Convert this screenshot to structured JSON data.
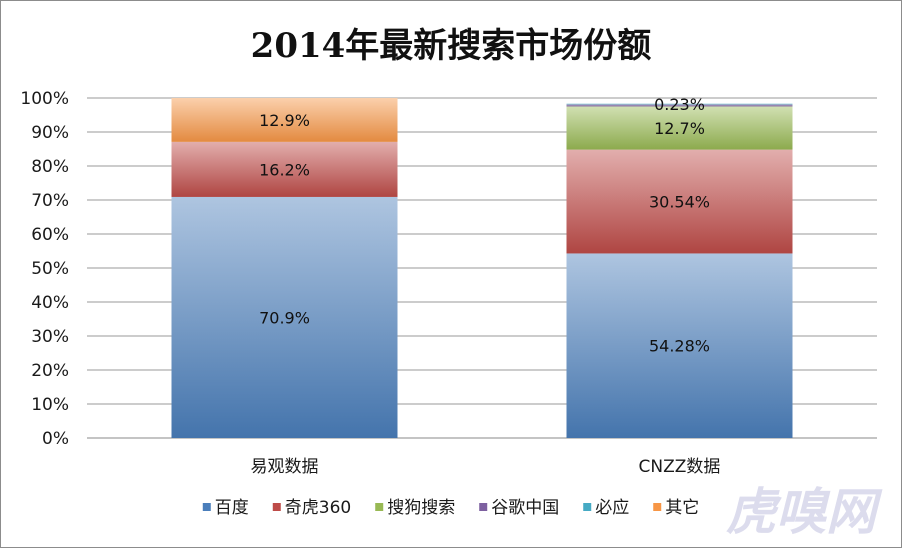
{
  "chart_data": {
    "type": "bar",
    "stacked": true,
    "title": "2014年最新搜索市场份额",
    "categories": [
      "易观数据",
      "CNZZ数据"
    ],
    "ylim": [
      0,
      100
    ],
    "yticks": [
      "0%",
      "10%",
      "20%",
      "30%",
      "40%",
      "50%",
      "60%",
      "70%",
      "80%",
      "90%",
      "100%"
    ],
    "grid": true,
    "legend_position": "bottom",
    "series": [
      {
        "name": "百度",
        "values": [
          70.9,
          54.28
        ],
        "labels": [
          "70.9%",
          "54.28%"
        ],
        "color": "#4a7ebb"
      },
      {
        "name": "奇虎360",
        "values": [
          16.2,
          30.54
        ],
        "labels": [
          "16.2%",
          "30.54%"
        ],
        "color": "#be4b48"
      },
      {
        "name": "搜狗搜索",
        "values": [
          0,
          12.7
        ],
        "labels": [
          "",
          "12.7%"
        ],
        "color": "#98b954"
      },
      {
        "name": "谷歌中国",
        "values": [
          0,
          0.6
        ],
        "labels": [
          "",
          ""
        ],
        "color": "#7d60a0"
      },
      {
        "name": "必应",
        "values": [
          0,
          0.23
        ],
        "labels": [
          "",
          "0.23%"
        ],
        "color": "#46aac4"
      },
      {
        "name": "其它",
        "values": [
          12.9,
          0
        ],
        "labels": [
          "12.9%",
          ""
        ],
        "color": "#f79646"
      }
    ]
  },
  "watermark": {
    "text": "虎嗅网",
    "color": "#d6d6ea"
  }
}
